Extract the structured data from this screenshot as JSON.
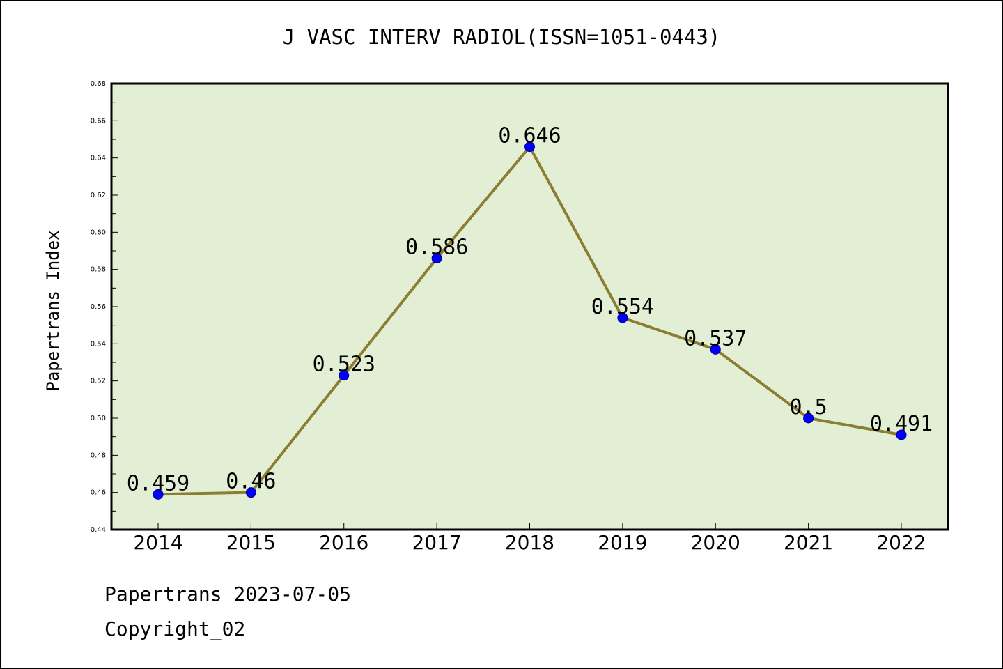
{
  "chart_data": {
    "type": "line",
    "title": "J VASC INTERV RADIOL(ISSN=1051-0443)",
    "xlabel": "",
    "ylabel": "Papertrans Index",
    "categories": [
      "2014",
      "2015",
      "2016",
      "2017",
      "2018",
      "2019",
      "2020",
      "2021",
      "2022"
    ],
    "series": [
      {
        "values": [
          0.459,
          0.46,
          0.523,
          0.586,
          0.646,
          0.554,
          0.537,
          0.5,
          0.491
        ],
        "data_labels": [
          "0.459",
          "0.46",
          "0.523",
          "0.586",
          "0.646",
          "0.554",
          "0.537",
          "0.5",
          "0.491"
        ]
      }
    ],
    "ylim": [
      0.44,
      0.68
    ],
    "yticks": [
      "0.44",
      "0.46",
      "0.48",
      "0.50",
      "0.52",
      "0.54",
      "0.56",
      "0.58",
      "0.60",
      "0.62",
      "0.64",
      "0.66",
      "0.68"
    ],
    "grid": false,
    "legend": "none",
    "colors": {
      "plot_background": "#e2efd4",
      "line": "#8b7d32",
      "marker": "#0000ff"
    }
  },
  "footer": {
    "line1": "Papertrans 2023-07-05",
    "line2": "Copyright_02"
  }
}
